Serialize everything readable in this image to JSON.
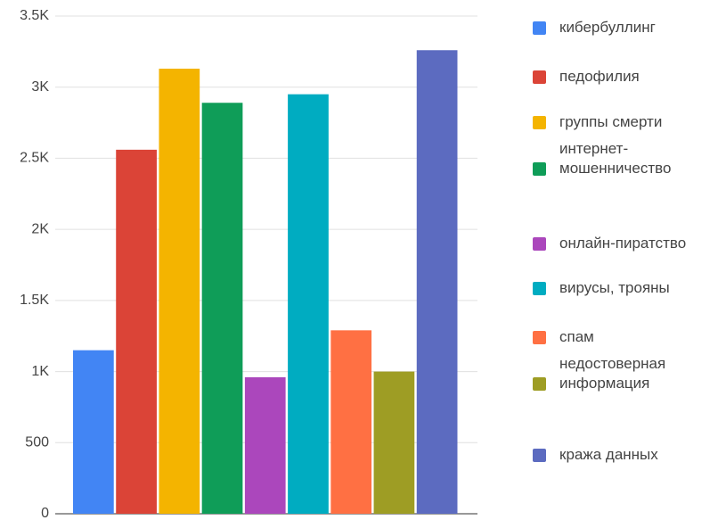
{
  "chart_data": {
    "type": "bar",
    "categories": [
      null
    ],
    "series": [
      {
        "name": "кибербуллинг",
        "color": "#4285f4",
        "values": [
          1150
        ]
      },
      {
        "name": "педофилия",
        "color": "#db4437",
        "values": [
          2560
        ]
      },
      {
        "name": "группы смерти",
        "color": "#f4b400",
        "values": [
          3130
        ]
      },
      {
        "name": "интернет-мошенничество",
        "color": "#0f9d58",
        "values": [
          2890
        ]
      },
      {
        "name": "онлайн-пиратство",
        "color": "#ab47bc",
        "values": [
          960
        ]
      },
      {
        "name": "вирусы, трояны",
        "color": "#00acc1",
        "values": [
          2950
        ]
      },
      {
        "name": "спам",
        "color": "#ff7043",
        "values": [
          1290
        ]
      },
      {
        "name": "недостоверная информация",
        "color": "#9e9d24",
        "values": [
          1000
        ]
      },
      {
        "name": "кража данных",
        "color": "#5c6bc0",
        "values": [
          3260
        ]
      }
    ],
    "ylim": [
      0,
      3500
    ],
    "yticks": [
      0,
      500,
      {
        "value": 1000,
        "label": "1K"
      },
      {
        "value": 1500,
        "label": "1.5K"
      },
      {
        "value": 2000,
        "label": "2K"
      },
      {
        "value": 2500,
        "label": "2.5K"
      },
      {
        "value": 3000,
        "label": "3K"
      },
      {
        "value": 3500,
        "label": "3.5K"
      }
    ],
    "grid": true,
    "legend": "right"
  }
}
